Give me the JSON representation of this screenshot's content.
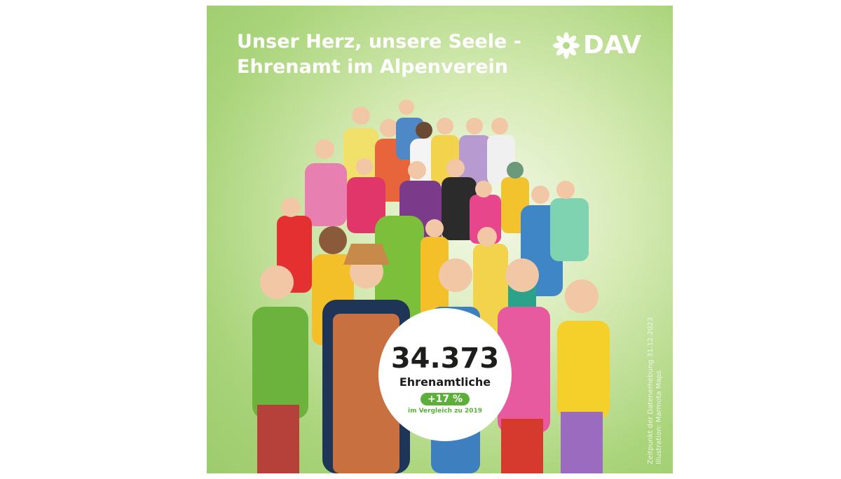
{
  "title": {
    "line1": "Unser Herz, unsere Seele -",
    "line2": "Ehrenamt im Alpenverein"
  },
  "logo": {
    "text": "DAV",
    "icon": "edelweiss-icon"
  },
  "stat": {
    "value": "34.373",
    "label": "Ehrenamtliche",
    "change": "+17 %",
    "comparison": "im Vergleich zu 2019"
  },
  "credits": {
    "line1": "Zeitpunkt der Datenerhebung 31.12.2023",
    "line2": "Illustration: Marmota Maps"
  },
  "colors": {
    "background": "#a9d47a",
    "accent": "#5cb039",
    "text": "#1d1d1b"
  }
}
